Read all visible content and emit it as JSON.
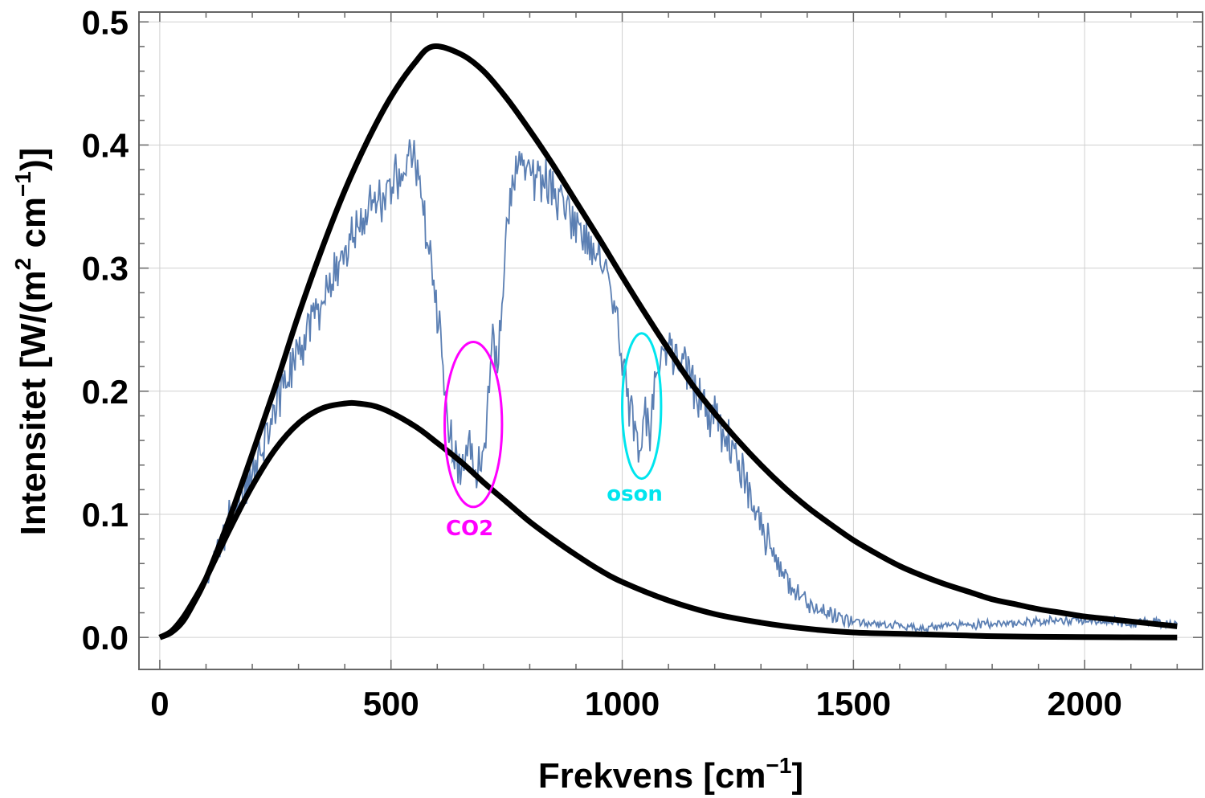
{
  "chart_data": {
    "type": "line",
    "xlabel_base": "Frekvens [cm",
    "xlabel_sup": "−1",
    "xlabel_end": "]",
    "ylabel_a": "Intensitet [W/(m",
    "ylabel_sup1": "2",
    "ylabel_b": " cm",
    "ylabel_sup2": "−1",
    "ylabel_end": ")]",
    "xlim": [
      -45,
      2255
    ],
    "ylim": [
      -0.026,
      0.508
    ],
    "grid": true,
    "x_ticks": [
      0,
      500,
      1000,
      1500,
      2000
    ],
    "x_tick_labels": [
      "0",
      "500",
      "1000",
      "1500",
      "2000"
    ],
    "y_ticks": [
      0.0,
      0.1,
      0.2,
      0.3,
      0.4,
      0.5
    ],
    "y_tick_labels": [
      "0.0",
      "0.1",
      "0.2",
      "0.3",
      "0.4",
      "0.5"
    ],
    "series": [
      {
        "curve": "upper",
        "color": "#000000",
        "x": [
          0,
          25,
          50,
          75,
          100,
          150,
          200,
          250,
          300,
          350,
          400,
          450,
          500,
          550,
          590,
          650,
          700,
          750,
          800,
          850,
          900,
          950,
          1000,
          1050,
          1100,
          1150,
          1200,
          1250,
          1300,
          1350,
          1400,
          1450,
          1500,
          1550,
          1600,
          1650,
          1700,
          1750,
          1800,
          1850,
          1900,
          1950,
          2000,
          2050,
          2100,
          2150,
          2200
        ],
        "y": [
          0.0,
          0.004,
          0.013,
          0.029,
          0.048,
          0.096,
          0.149,
          0.204,
          0.262,
          0.315,
          0.363,
          0.404,
          0.439,
          0.466,
          0.48,
          0.474,
          0.46,
          0.438,
          0.412,
          0.384,
          0.354,
          0.324,
          0.293,
          0.263,
          0.234,
          0.206,
          0.182,
          0.16,
          0.14,
          0.122,
          0.106,
          0.092,
          0.079,
          0.068,
          0.058,
          0.05,
          0.043,
          0.037,
          0.031,
          0.027,
          0.023,
          0.02,
          0.017,
          0.015,
          0.013,
          0.011,
          0.009
        ]
      },
      {
        "curve": "lower",
        "color": "#000000",
        "x": [
          0,
          25,
          50,
          75,
          100,
          150,
          200,
          250,
          300,
          350,
          400,
          430,
          480,
          550,
          600,
          650,
          700,
          750,
          800,
          850,
          900,
          950,
          1000,
          1100,
          1200,
          1300,
          1400,
          1500,
          1600,
          1700,
          1800,
          1900,
          2000,
          2100,
          2200
        ],
        "y": [
          0.0,
          0.005,
          0.016,
          0.031,
          0.048,
          0.087,
          0.123,
          0.153,
          0.174,
          0.186,
          0.19,
          0.19,
          0.186,
          0.172,
          0.158,
          0.143,
          0.126,
          0.11,
          0.094,
          0.08,
          0.067,
          0.055,
          0.045,
          0.03,
          0.019,
          0.012,
          0.007,
          0.004,
          0.003,
          0.002,
          0.001,
          0.0005,
          0.0003,
          0.0001,
          0.0
        ]
      },
      {
        "curve": "spectrum",
        "color": "#5b7fb3",
        "x": [
          0,
          25,
          50,
          75,
          100,
          125,
          150,
          175,
          200,
          225,
          250,
          275,
          300,
          325,
          350,
          375,
          400,
          425,
          450,
          475,
          500,
          520,
          540,
          555,
          570,
          580,
          590,
          605,
          620,
          635,
          650,
          665,
          680,
          690,
          700,
          710,
          720,
          730,
          745,
          760,
          780,
          800,
          830,
          860,
          890,
          920,
          950,
          980,
          1000,
          1010,
          1025,
          1040,
          1050,
          1060,
          1075,
          1090,
          1110,
          1130,
          1150,
          1180,
          1210,
          1240,
          1270,
          1300,
          1330,
          1360,
          1400,
          1450,
          1500,
          1550,
          1600,
          1650,
          1700,
          1750,
          1800,
          1850,
          1900,
          1950,
          2000,
          2050,
          2100,
          2150,
          2200
        ],
        "y": [
          0.0,
          0.004,
          0.015,
          0.032,
          0.05,
          0.072,
          0.095,
          0.112,
          0.13,
          0.165,
          0.19,
          0.215,
          0.23,
          0.255,
          0.275,
          0.3,
          0.315,
          0.33,
          0.345,
          0.355,
          0.365,
          0.38,
          0.39,
          0.385,
          0.35,
          0.32,
          0.29,
          0.25,
          0.18,
          0.15,
          0.14,
          0.155,
          0.14,
          0.135,
          0.15,
          0.19,
          0.25,
          0.22,
          0.3,
          0.37,
          0.385,
          0.38,
          0.37,
          0.36,
          0.345,
          0.33,
          0.31,
          0.28,
          0.23,
          0.2,
          0.18,
          0.155,
          0.175,
          0.16,
          0.22,
          0.24,
          0.235,
          0.225,
          0.21,
          0.19,
          0.17,
          0.15,
          0.12,
          0.09,
          0.065,
          0.045,
          0.028,
          0.018,
          0.013,
          0.011,
          0.009,
          0.008,
          0.009,
          0.01,
          0.011,
          0.012,
          0.013,
          0.014,
          0.014,
          0.013,
          0.012,
          0.012,
          0.011
        ]
      }
    ],
    "annotations": [
      {
        "label": "CO2",
        "color": "#ff00ff",
        "cx": 678,
        "cy": 0.173,
        "rx": 62,
        "ry": 0.067,
        "label_x": 670,
        "label_y": 0.083
      },
      {
        "label": "oson",
        "color": "#00e5ee",
        "cx": 1042,
        "cy": 0.188,
        "rx": 42,
        "ry": 0.059,
        "label_x": 1027,
        "label_y": 0.111
      }
    ]
  }
}
